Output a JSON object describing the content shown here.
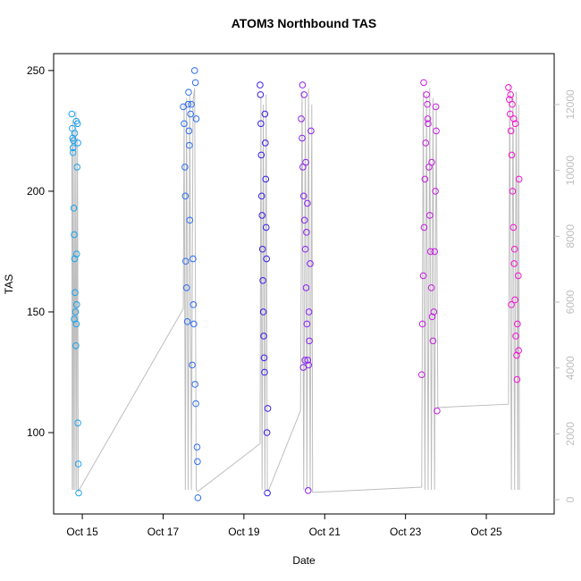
{
  "chart_data": {
    "type": "scatter",
    "title": "ATOM3 Northbound TAS",
    "x_label": "Date",
    "y_label": "TAS",
    "xlim": [
      14.29,
      26.68
    ],
    "xticks": [
      {
        "value": 15,
        "label": "Oct 15"
      },
      {
        "value": 17,
        "label": "Oct 17"
      },
      {
        "value": 19,
        "label": "Oct 19"
      },
      {
        "value": 21,
        "label": "Oct 21"
      },
      {
        "value": 23,
        "label": "Oct 23"
      },
      {
        "value": 25,
        "label": "Oct 25"
      }
    ],
    "ylim": [
      66.3,
      257
    ],
    "yticks": [
      100,
      150,
      200,
      250
    ],
    "y2lim": [
      -434,
      13547
    ],
    "y2ticks": [
      0,
      2000,
      4000,
      6000,
      8000,
      10000,
      12000
    ],
    "series": [
      {
        "type": "line",
        "axis": "y2",
        "color": "#bebebe",
        "x": [
          14.74,
          14.75,
          14.76,
          14.78,
          14.8,
          14.82,
          14.84,
          14.86,
          14.88,
          14.9,
          17.5,
          17.52,
          17.55,
          17.58,
          17.62,
          17.66,
          17.7,
          17.74,
          17.78,
          17.82,
          17.86,
          19.4,
          19.42,
          19.45,
          19.48,
          19.52,
          19.55,
          19.58,
          19.6,
          20.4,
          20.44,
          20.48,
          20.52,
          20.56,
          20.6,
          20.64,
          20.68,
          20.7,
          23.4,
          23.44,
          23.48,
          23.52,
          23.56,
          23.6,
          23.64,
          23.68,
          23.72,
          23.76,
          23.8,
          25.55,
          25.58,
          25.62,
          25.66,
          25.7,
          25.74,
          25.78,
          25.8,
          25.82
        ],
        "values": [
          11000,
          300,
          11500,
          300,
          11200,
          300,
          11800,
          300,
          11000,
          250,
          5800,
          12000,
          300,
          12200,
          300,
          12300,
          300,
          12100,
          12500,
          300,
          250,
          1700,
          12200,
          300,
          12000,
          300,
          12300,
          300,
          250,
          2700,
          12400,
          300,
          12200,
          300,
          12500,
          300,
          12000,
          220,
          380,
          12400,
          300,
          12300,
          300,
          12500,
          300,
          12200,
          300,
          12000,
          2800,
          2900,
          12600,
          300,
          12300,
          300,
          12400,
          300,
          12000,
          300
        ]
      },
      {
        "type": "scatter",
        "color": "#1aa3f0",
        "x": [
          14.74,
          14.75,
          14.76,
          14.77,
          14.78,
          14.79,
          14.8,
          14.81,
          14.82,
          14.83,
          14.84,
          14.85,
          14.86,
          14.87,
          14.88,
          14.89,
          14.9,
          14.91,
          14.77,
          14.81,
          14.85,
          14.89,
          14.8,
          14.86
        ],
        "values": [
          232,
          226,
          222,
          218,
          221,
          193,
          182,
          172,
          158,
          150,
          136,
          145,
          174,
          210,
          228,
          104,
          87,
          75,
          216,
          224,
          229,
          220,
          147,
          153
        ]
      },
      {
        "type": "scatter",
        "color": "#2f6ef0",
        "x": [
          17.5,
          17.52,
          17.54,
          17.55,
          17.56,
          17.58,
          17.6,
          17.62,
          17.63,
          17.64,
          17.65,
          17.66,
          17.68,
          17.7,
          17.72,
          17.74,
          17.75,
          17.76,
          17.78,
          17.8,
          17.82,
          17.84,
          17.85,
          17.86,
          17.79,
          17.81
        ],
        "values": [
          235,
          228,
          210,
          198,
          171,
          160,
          146,
          236,
          241,
          225,
          219,
          188,
          232,
          236,
          128,
          172,
          153,
          145,
          250,
          245,
          230,
          94,
          88,
          73,
          120,
          112
        ]
      },
      {
        "type": "scatter",
        "color": "#3a1fe6",
        "x": [
          19.4,
          19.41,
          19.42,
          19.43,
          19.44,
          19.45,
          19.46,
          19.47,
          19.48,
          19.49,
          19.5,
          19.51,
          19.52,
          19.53,
          19.54,
          19.55,
          19.56,
          19.57,
          19.58,
          19.59
        ],
        "values": [
          244,
          240,
          228,
          215,
          198,
          190,
          176,
          163,
          150,
          140,
          131,
          125,
          232,
          220,
          205,
          185,
          172,
          100,
          75,
          110
        ]
      },
      {
        "type": "scatter",
        "color": "#8a22ee",
        "x": [
          20.42,
          20.44,
          20.46,
          20.48,
          20.5,
          20.52,
          20.54,
          20.56,
          20.58,
          20.6,
          20.62,
          20.64,
          20.66,
          20.45,
          20.49,
          20.53,
          20.57,
          20.61,
          20.47,
          20.51,
          20.55,
          20.59
        ],
        "values": [
          230,
          222,
          210,
          198,
          188,
          176,
          160,
          145,
          130,
          128,
          138,
          170,
          225,
          244,
          240,
          212,
          195,
          150,
          127,
          130,
          183,
          76
        ]
      },
      {
        "type": "scatter",
        "color": "#c61fe0",
        "x": [
          23.4,
          23.42,
          23.44,
          23.46,
          23.48,
          23.5,
          23.52,
          23.54,
          23.56,
          23.58,
          23.6,
          23.62,
          23.64,
          23.66,
          23.68,
          23.7,
          23.72,
          23.74,
          23.76,
          23.78,
          23.45,
          23.55,
          23.65,
          23.75
        ],
        "values": [
          124,
          145,
          165,
          185,
          205,
          220,
          240,
          236,
          228,
          210,
          190,
          175,
          160,
          148,
          138,
          150,
          175,
          200,
          225,
          109,
          245,
          230,
          212,
          235
        ]
      },
      {
        "type": "scatter",
        "color": "#f414d2",
        "x": [
          25.55,
          25.57,
          25.59,
          25.61,
          25.63,
          25.65,
          25.67,
          25.69,
          25.71,
          25.73,
          25.75,
          25.77,
          25.79,
          25.81,
          25.6,
          25.64,
          25.68,
          25.72,
          25.76,
          25.8,
          25.62,
          25.7
        ],
        "values": [
          243,
          238,
          232,
          225,
          215,
          200,
          185,
          170,
          155,
          140,
          132,
          145,
          165,
          205,
          240,
          236,
          230,
          228,
          122,
          134,
          153,
          176
        ]
      }
    ]
  }
}
